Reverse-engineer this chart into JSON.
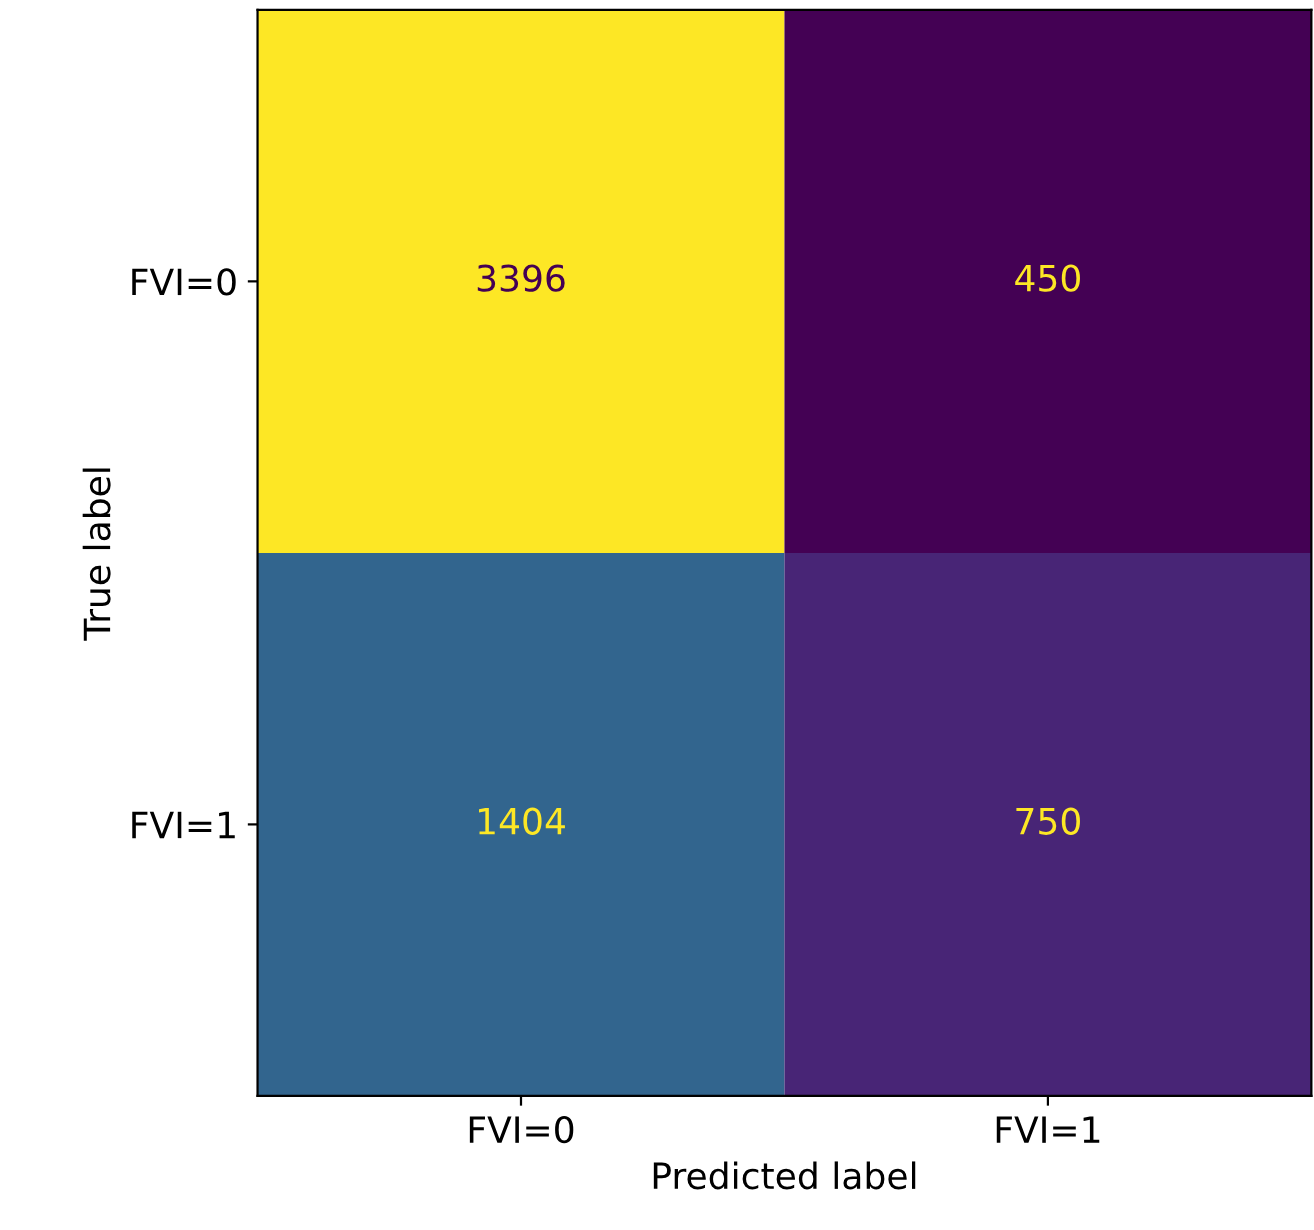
{
  "chart_data": {
    "type": "heatmap",
    "xlabel": "Predicted label",
    "ylabel": "True label",
    "categories": [
      "FVI=0",
      "FVI=1"
    ],
    "y_categories": [
      "FVI=0",
      "FVI=1"
    ],
    "cells": [
      [
        3396,
        450
      ],
      [
        1404,
        750
      ]
    ],
    "data_labels": true,
    "grid": false
  }
}
